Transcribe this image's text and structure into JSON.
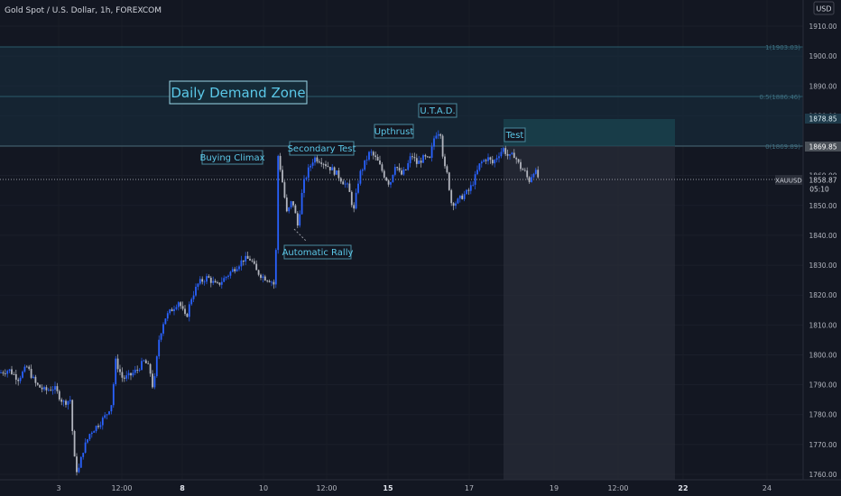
{
  "header": {
    "symbol_title": "Gold Spot / U.S. Dollar, 1h, FOREXCOM",
    "currency": "USD"
  },
  "price_axis": {
    "ticks": [
      1910,
      1900,
      1890,
      1880,
      1870,
      1860,
      1850,
      1840,
      1830,
      1820,
      1810,
      1800,
      1790,
      1780,
      1770,
      1760
    ],
    "tick_labels": [
      "1910.00",
      "1900.00",
      "1890.00",
      "1880.00",
      "1870.00",
      "1860.00",
      "1850.00",
      "1840.00",
      "1830.00",
      "1820.00",
      "1810.00",
      "1800.00",
      "1790.00",
      "1780.00",
      "1770.00",
      "1760.00"
    ],
    "range": [
      1758,
      1913
    ]
  },
  "time_axis": {
    "tick_labels": [
      "3",
      "12:00",
      "8",
      "10",
      "12:00",
      "15",
      "17",
      "19",
      "12:00",
      "22",
      "24"
    ],
    "bold_labels": [
      "8",
      "15",
      "22"
    ]
  },
  "markers": {
    "xauusd_label": "XAUUSD",
    "xauusd_price": "1858.87",
    "countdown": "05:10",
    "upper_level_1": "1878.85",
    "upper_level_2": "1869.85"
  },
  "fib": {
    "level_1_label": "1(1903.03)",
    "level_05_label": "0.5(1886.46)",
    "level_0_label": "0(1869.89)",
    "level_1": 1903.03,
    "level_05": 1886.46,
    "level_0": 1869.89
  },
  "annotations": {
    "zone": "Daily Demand Zone",
    "buying_climax": "Buying Climax",
    "secondary_test": "Secondary Test",
    "upthrust": "Upthrust",
    "utad": "U.T.A.D.",
    "test": "Test",
    "automatic_rally": "Automatic Rally"
  },
  "colors": {
    "background": "#131722",
    "up_candle": "#2962ff",
    "down_candle": "#b2b5be",
    "zone_fill": "#1a3a4a",
    "annotation_text": "#5bc8e8",
    "grid": "#1e222d",
    "axis_text": "#b2b5be"
  },
  "chart_data": {
    "type": "candlestick",
    "title": "Gold Spot / U.S. Dollar, 1h, FOREXCOM",
    "ylim": [
      1758,
      1913
    ],
    "path": [
      [
        0,
        1794
      ],
      [
        10,
        1795
      ],
      [
        20,
        1792
      ],
      [
        30,
        1796
      ],
      [
        40,
        1790
      ],
      [
        50,
        1788
      ],
      [
        60,
        1789
      ],
      [
        70,
        1784
      ],
      [
        78,
        1785
      ],
      [
        82,
        1766
      ],
      [
        86,
        1760
      ],
      [
        92,
        1768
      ],
      [
        100,
        1774
      ],
      [
        110,
        1777
      ],
      [
        118,
        1780
      ],
      [
        124,
        1784
      ],
      [
        128,
        1798
      ],
      [
        136,
        1792
      ],
      [
        144,
        1793
      ],
      [
        152,
        1795
      ],
      [
        160,
        1798
      ],
      [
        166,
        1795
      ],
      [
        170,
        1788
      ],
      [
        176,
        1805
      ],
      [
        182,
        1812
      ],
      [
        190,
        1815
      ],
      [
        198,
        1818
      ],
      [
        206,
        1812
      ],
      [
        212,
        1819
      ],
      [
        220,
        1824
      ],
      [
        230,
        1826
      ],
      [
        240,
        1823
      ],
      [
        250,
        1826
      ],
      [
        260,
        1829
      ],
      [
        270,
        1832
      ],
      [
        278,
        1832
      ],
      [
        284,
        1828
      ],
      [
        292,
        1826
      ],
      [
        300,
        1825
      ],
      [
        305,
        1823
      ],
      [
        308,
        1867
      ],
      [
        312,
        1860
      ],
      [
        318,
        1847
      ],
      [
        324,
        1852
      ],
      [
        330,
        1843
      ],
      [
        336,
        1857
      ],
      [
        342,
        1862
      ],
      [
        348,
        1866
      ],
      [
        356,
        1865
      ],
      [
        364,
        1863
      ],
      [
        372,
        1861
      ],
      [
        380,
        1858
      ],
      [
        386,
        1856
      ],
      [
        392,
        1848
      ],
      [
        398,
        1860
      ],
      [
        404,
        1864
      ],
      [
        410,
        1868
      ],
      [
        418,
        1865
      ],
      [
        426,
        1860
      ],
      [
        432,
        1857
      ],
      [
        438,
        1864
      ],
      [
        444,
        1860
      ],
      [
        450,
        1862
      ],
      [
        456,
        1867
      ],
      [
        462,
        1864
      ],
      [
        470,
        1866
      ],
      [
        476,
        1865
      ],
      [
        482,
        1874
      ],
      [
        488,
        1875
      ],
      [
        492,
        1863
      ],
      [
        496,
        1860
      ],
      [
        500,
        1851
      ],
      [
        506,
        1851
      ],
      [
        512,
        1853
      ],
      [
        520,
        1855
      ],
      [
        526,
        1859
      ],
      [
        532,
        1864
      ],
      [
        540,
        1866
      ],
      [
        546,
        1864
      ],
      [
        552,
        1867
      ],
      [
        558,
        1869
      ],
      [
        564,
        1866
      ],
      [
        570,
        1867
      ],
      [
        576,
        1863
      ],
      [
        582,
        1861
      ],
      [
        586,
        1858
      ],
      [
        592,
        1862
      ],
      [
        597,
        1859
      ]
    ]
  }
}
